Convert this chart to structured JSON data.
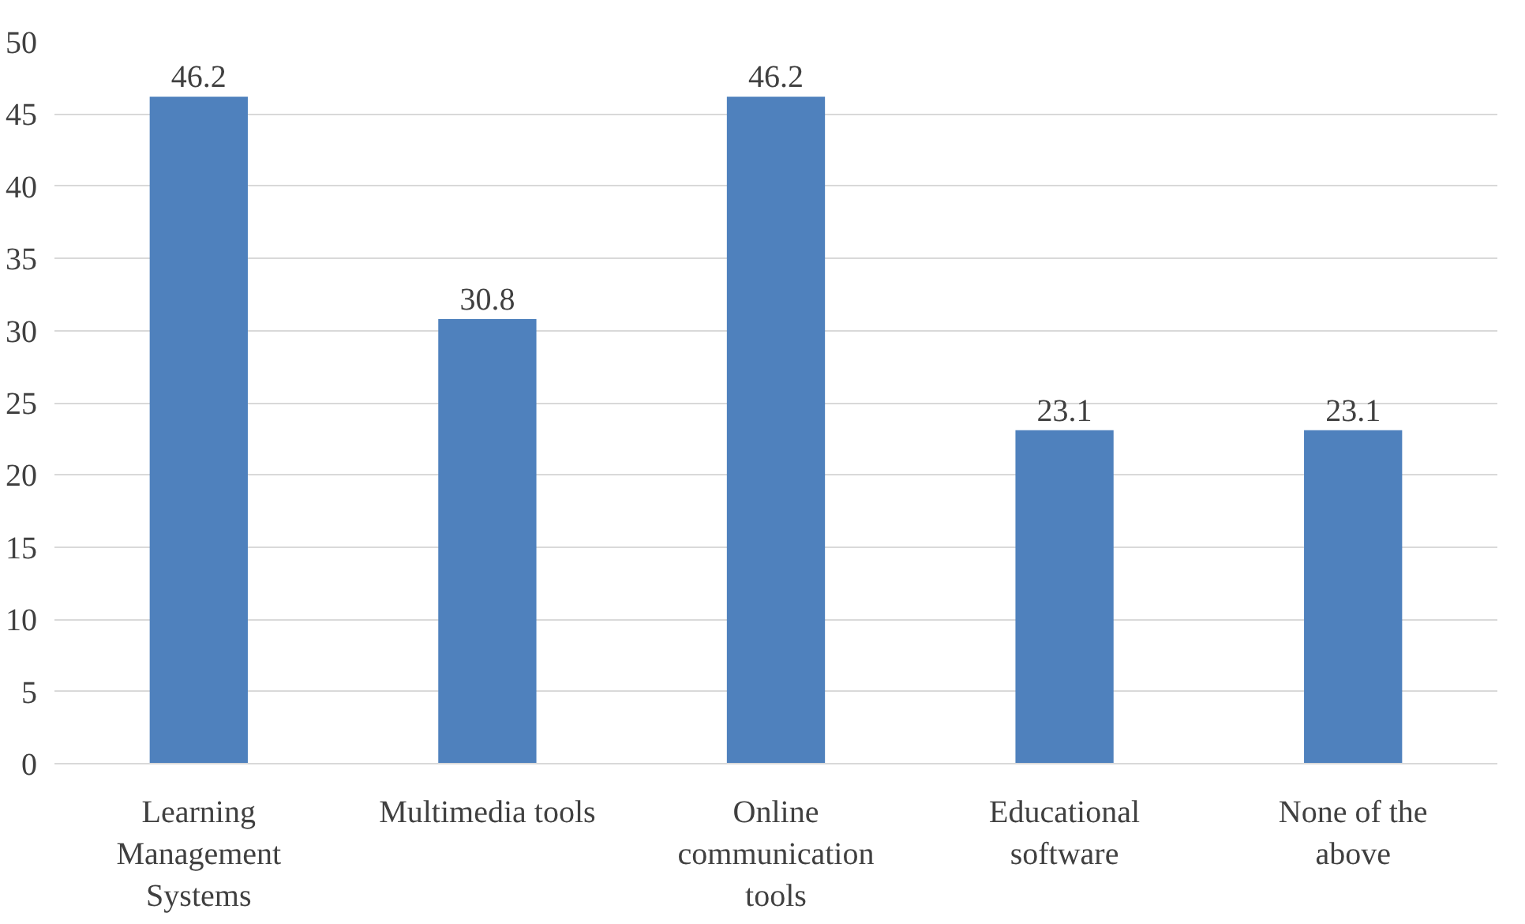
{
  "chart_data": {
    "type": "bar",
    "categories": [
      "Learning Management Systems",
      "Multimedia tools",
      "Online communication tools",
      "Educational software",
      "None of the above"
    ],
    "values": [
      46.2,
      30.8,
      46.2,
      23.1,
      23.1
    ],
    "color": "#4f81bd",
    "ylim": [
      0,
      50
    ],
    "yticks": [
      0,
      5,
      10,
      15,
      20,
      25,
      30,
      35,
      40,
      45,
      50
    ],
    "grid": "y",
    "data_labels": true
  }
}
